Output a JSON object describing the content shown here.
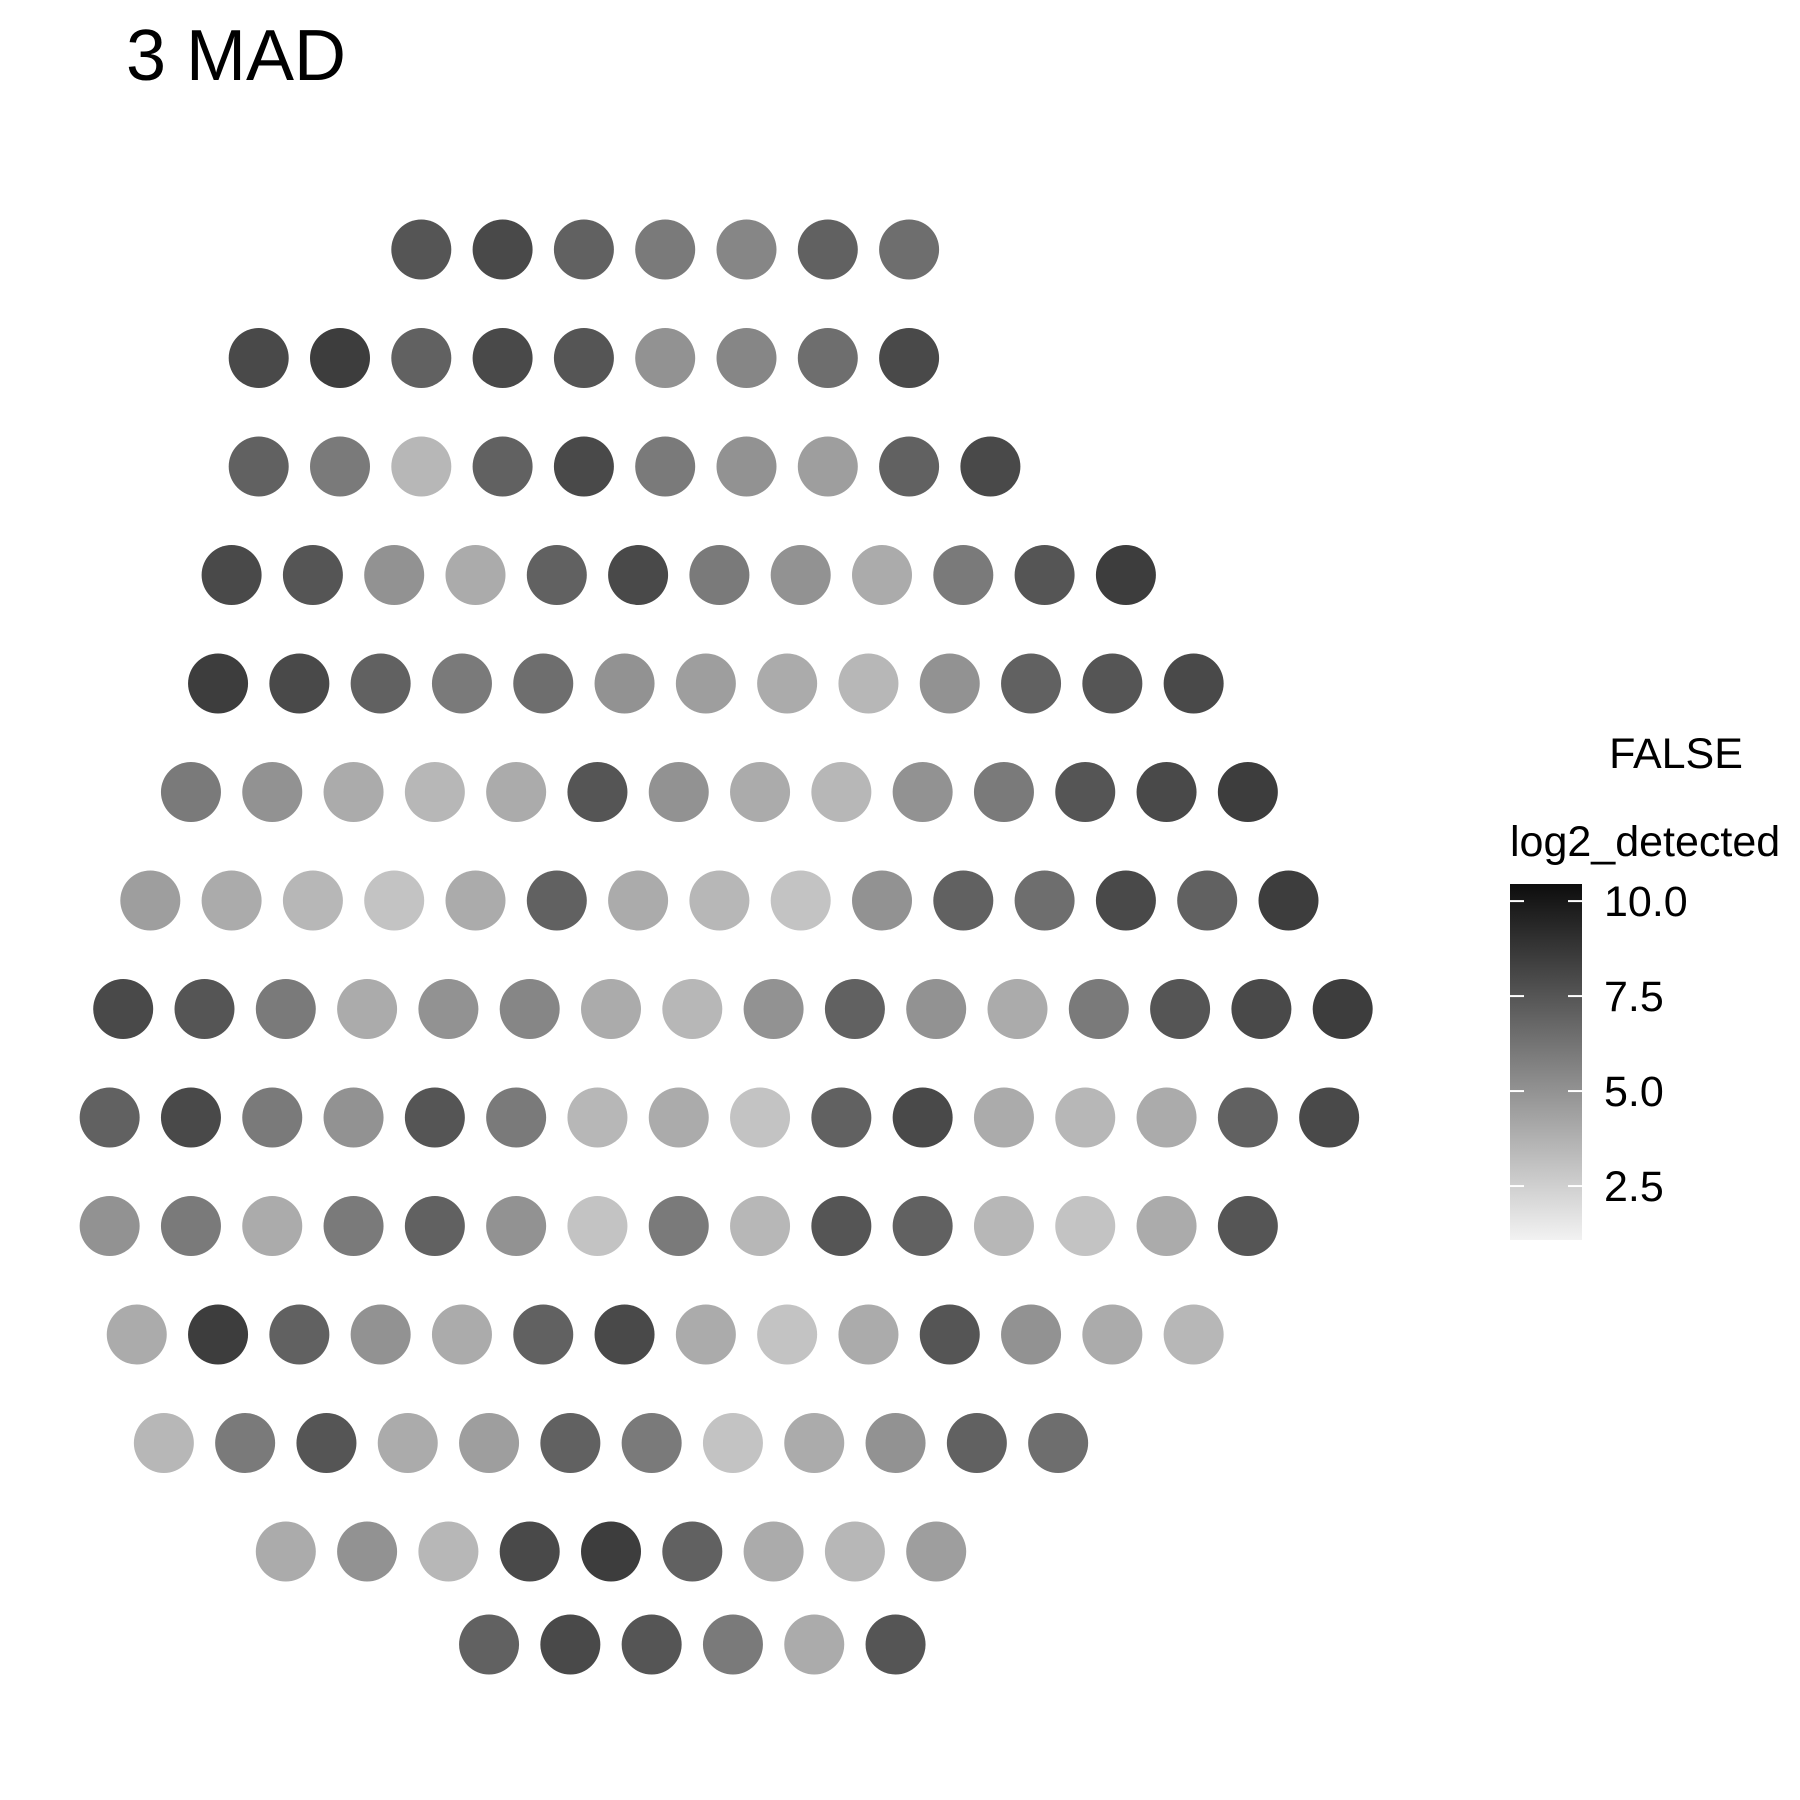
{
  "chart_data": {
    "type": "scatter",
    "title": "3 MAD",
    "xlim": [
      0,
      100
    ],
    "ylim": [
      0,
      100
    ],
    "x": [
      26,
      32,
      38,
      44,
      50,
      56,
      62,
      14,
      20,
      26,
      32,
      38,
      44,
      50,
      56,
      62,
      14,
      20,
      26,
      32,
      38,
      44,
      50,
      56,
      62,
      68,
      12,
      18,
      24,
      30,
      36,
      42,
      48,
      54,
      60,
      66,
      72,
      78,
      11,
      17,
      23,
      29,
      35,
      41,
      47,
      53,
      59,
      65,
      71,
      77,
      83,
      9,
      15,
      21,
      27,
      33,
      39,
      45,
      51,
      57,
      63,
      69,
      75,
      81,
      87,
      6,
      12,
      18,
      24,
      30,
      36,
      42,
      48,
      54,
      60,
      66,
      72,
      78,
      84,
      90,
      4,
      10,
      16,
      22,
      28,
      34,
      40,
      46,
      52,
      58,
      64,
      70,
      76,
      82,
      88,
      94,
      3,
      9,
      15,
      21,
      27,
      33,
      39,
      45,
      51,
      57,
      63,
      69,
      75,
      81,
      87,
      93,
      3,
      9,
      15,
      21,
      27,
      33,
      39,
      45,
      51,
      57,
      63,
      69,
      75,
      81,
      87,
      5,
      11,
      17,
      23,
      29,
      35,
      41,
      47,
      53,
      59,
      65,
      71,
      77,
      83,
      7,
      13,
      19,
      25,
      31,
      37,
      43,
      49,
      55,
      61,
      67,
      73,
      16,
      22,
      28,
      34,
      40,
      46,
      52,
      58,
      64,
      31,
      37,
      43,
      49,
      55,
      61
    ],
    "y": [
      95,
      95,
      95,
      95,
      95,
      95,
      95,
      88,
      88,
      88,
      88,
      88,
      88,
      88,
      88,
      88,
      81,
      81,
      81,
      81,
      81,
      81,
      81,
      81,
      81,
      81,
      74,
      74,
      74,
      74,
      74,
      74,
      74,
      74,
      74,
      74,
      74,
      74,
      67,
      67,
      67,
      67,
      67,
      67,
      67,
      67,
      67,
      67,
      67,
      67,
      67,
      60,
      60,
      60,
      60,
      60,
      60,
      60,
      60,
      60,
      60,
      60,
      60,
      60,
      60,
      53,
      53,
      53,
      53,
      53,
      53,
      53,
      53,
      53,
      53,
      53,
      53,
      53,
      53,
      53,
      46,
      46,
      46,
      46,
      46,
      46,
      46,
      46,
      46,
      46,
      46,
      46,
      46,
      46,
      46,
      46,
      39,
      39,
      39,
      39,
      39,
      39,
      39,
      39,
      39,
      39,
      39,
      39,
      39,
      39,
      39,
      39,
      32,
      32,
      32,
      32,
      32,
      32,
      32,
      32,
      32,
      32,
      32,
      32,
      32,
      32,
      32,
      25,
      25,
      25,
      25,
      25,
      25,
      25,
      25,
      25,
      25,
      25,
      25,
      25,
      25,
      18,
      18,
      18,
      18,
      18,
      18,
      18,
      18,
      18,
      18,
      18,
      18,
      11,
      11,
      11,
      11,
      11,
      11,
      11,
      11,
      11,
      5,
      5,
      5,
      5,
      5,
      5
    ],
    "values": [
      7.5,
      8,
      7,
      6,
      5.5,
      7,
      6.5,
      8,
      8.5,
      7,
      8,
      7.5,
      5,
      5.5,
      6.5,
      8,
      7,
      6,
      3.5,
      7,
      8,
      6,
      5,
      4.5,
      7,
      8,
      8,
      7.5,
      5,
      4,
      7,
      8,
      6,
      5,
      4,
      6,
      7.5,
      8.5,
      8.5,
      8,
      7,
      6,
      6.5,
      5,
      4.5,
      4,
      3.5,
      5,
      7,
      7.5,
      8,
      6,
      5,
      4,
      3.5,
      4,
      7.5,
      5,
      4,
      3.5,
      5,
      6,
      7.5,
      8,
      8.5,
      4.5,
      4,
      3.5,
      3,
      4,
      7,
      4,
      3.5,
      3,
      5,
      7,
      6.5,
      8,
      7,
      8.5,
      8,
      7.5,
      6,
      4,
      5,
      5.5,
      4,
      3.5,
      5,
      7,
      5,
      4,
      6,
      7.5,
      8,
      8.5,
      7,
      8,
      6,
      5,
      7.5,
      6,
      3.5,
      4,
      3,
      7,
      8,
      4,
      3.5,
      4,
      7,
      8,
      5,
      6,
      4,
      6,
      7,
      5,
      3,
      6,
      3.5,
      7.5,
      7,
      3.5,
      3,
      4,
      7.5,
      4,
      8.5,
      7,
      5,
      4,
      7,
      8,
      4,
      3,
      4,
      7.5,
      5,
      4,
      3.5,
      3.5,
      6,
      7.5,
      4,
      4.5,
      7,
      6,
      3,
      4,
      5,
      7,
      6.5,
      4,
      5,
      3.5,
      8,
      8.5,
      7,
      4,
      3.5,
      4.5,
      7,
      8,
      7.5,
      6,
      4,
      7.5
    ],
    "group_label": "FALSE",
    "colorbar": {
      "title": "log2_detected",
      "lim": [
        1.08,
        10.45
      ],
      "ticks": [
        {
          "value": 10,
          "label": "10.0"
        },
        7.5,
        {
          "value": 5,
          "label": "5.0"
        },
        2.5
      ],
      "low_color": "#f2f2f2",
      "high_color": "#0d0d0d"
    }
  }
}
